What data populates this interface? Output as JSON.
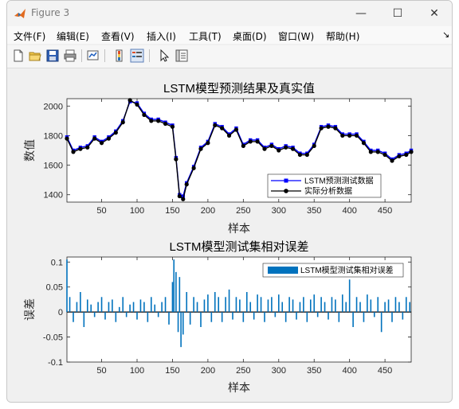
{
  "window": {
    "title": "Figure 3",
    "controls": {
      "minimize": "—",
      "maximize": "☐",
      "close": "✕"
    }
  },
  "menubar": {
    "items": [
      {
        "label": "文件(F)"
      },
      {
        "label": "编辑(E)"
      },
      {
        "label": "查看(V)"
      },
      {
        "label": "插入(I)"
      },
      {
        "label": "工具(T)"
      },
      {
        "label": "桌面(D)"
      },
      {
        "label": "窗口(W)"
      },
      {
        "label": "帮助(H)"
      }
    ],
    "dock_glyph": "↘"
  },
  "toolbar": {
    "icons": [
      "new-figure-icon",
      "open-file-icon",
      "save-icon",
      "print-icon",
      "link-plot-icon",
      "insert-colorbar-icon",
      "insert-legend-icon",
      "pointer-icon",
      "property-inspector-icon"
    ]
  },
  "chart_data": [
    {
      "type": "line",
      "title": "LSTM模型预测结果及真实值",
      "xlabel": "样本",
      "ylabel": "数值",
      "xlim": [
        1,
        487
      ],
      "ylim": [
        1350,
        2050
      ],
      "xticks": [
        50,
        100,
        150,
        200,
        250,
        300,
        350,
        400,
        450
      ],
      "xtick_labels": [
        "50",
        "100",
        "150",
        "200",
        "250",
        "300",
        "350",
        "400",
        "450"
      ],
      "yticks": [
        1400,
        1600,
        1800,
        2000
      ],
      "ytick_labels": [
        "1400",
        "1600",
        "1800",
        "2000"
      ],
      "grid": false,
      "legend_position": "bottom-right",
      "series": [
        {
          "name": "LSTM预测测试数据",
          "color": "#0000ff",
          "marker": "square",
          "x": [
            1,
            10,
            20,
            30,
            40,
            50,
            60,
            70,
            80,
            90,
            100,
            110,
            120,
            130,
            140,
            150,
            155,
            160,
            165,
            170,
            180,
            190,
            200,
            210,
            220,
            230,
            240,
            250,
            260,
            270,
            280,
            290,
            300,
            310,
            320,
            330,
            340,
            350,
            360,
            370,
            380,
            390,
            400,
            410,
            420,
            430,
            440,
            450,
            460,
            470,
            480,
            487
          ],
          "values": [
            1790,
            1700,
            1720,
            1730,
            1790,
            1760,
            1790,
            1830,
            1900,
            2030,
            2020,
            1950,
            1910,
            1910,
            1890,
            1870,
            1650,
            1400,
            1390,
            1480,
            1590,
            1720,
            1760,
            1880,
            1860,
            1810,
            1850,
            1740,
            1770,
            1770,
            1720,
            1740,
            1710,
            1730,
            1720,
            1680,
            1680,
            1740,
            1860,
            1870,
            1860,
            1810,
            1810,
            1810,
            1760,
            1700,
            1700,
            1680,
            1640,
            1670,
            1680,
            1700
          ]
        },
        {
          "name": "实际分析数据",
          "color": "#000000",
          "marker": "circle",
          "x": [
            1,
            10,
            20,
            30,
            40,
            50,
            60,
            70,
            80,
            90,
            100,
            110,
            120,
            130,
            140,
            150,
            155,
            160,
            165,
            170,
            180,
            190,
            200,
            210,
            220,
            230,
            240,
            250,
            260,
            270,
            280,
            290,
            300,
            310,
            320,
            330,
            340,
            350,
            360,
            370,
            380,
            390,
            400,
            410,
            420,
            430,
            440,
            450,
            460,
            470,
            480,
            487
          ],
          "values": [
            1780,
            1690,
            1710,
            1720,
            1780,
            1750,
            1780,
            1820,
            1890,
            2040,
            2010,
            1940,
            1900,
            1900,
            1880,
            1860,
            1640,
            1390,
            1370,
            1470,
            1580,
            1710,
            1750,
            1870,
            1850,
            1800,
            1840,
            1730,
            1760,
            1760,
            1710,
            1730,
            1700,
            1720,
            1710,
            1670,
            1670,
            1730,
            1850,
            1860,
            1850,
            1800,
            1800,
            1800,
            1750,
            1690,
            1690,
            1670,
            1630,
            1660,
            1670,
            1690
          ]
        }
      ]
    },
    {
      "type": "bar",
      "title": "LSTM模型测试集相对误差",
      "xlabel": "样本",
      "ylabel": "误差",
      "xlim": [
        1,
        487
      ],
      "ylim": [
        -0.1,
        0.11
      ],
      "xticks": [
        50,
        100,
        150,
        200,
        250,
        300,
        350,
        400,
        450
      ],
      "xtick_labels": [
        "50",
        "100",
        "150",
        "200",
        "250",
        "300",
        "350",
        "400",
        "450"
      ],
      "yticks": [
        -0.1,
        -0.05,
        0,
        0.05,
        0.1
      ],
      "ytick_labels": [
        "-0.1",
        "-0.05",
        "0",
        "0.05",
        "0.1"
      ],
      "grid": false,
      "legend_position": "top-right",
      "series": [
        {
          "name": "LSTM模型测试集相对误差",
          "color": "#0072bd",
          "x": [
            1,
            5,
            10,
            15,
            20,
            25,
            30,
            35,
            40,
            45,
            50,
            55,
            60,
            65,
            70,
            75,
            80,
            85,
            90,
            95,
            100,
            105,
            110,
            115,
            120,
            125,
            130,
            135,
            140,
            145,
            150,
            152,
            155,
            158,
            160,
            162,
            165,
            170,
            175,
            180,
            185,
            190,
            195,
            200,
            205,
            210,
            215,
            220,
            225,
            230,
            235,
            240,
            245,
            250,
            255,
            260,
            265,
            270,
            275,
            280,
            285,
            290,
            295,
            300,
            305,
            310,
            315,
            320,
            325,
            330,
            335,
            340,
            345,
            350,
            355,
            360,
            365,
            370,
            375,
            380,
            385,
            390,
            395,
            400,
            405,
            410,
            415,
            420,
            425,
            430,
            435,
            440,
            445,
            450,
            455,
            460,
            465,
            470,
            475,
            480,
            485
          ],
          "values": [
            0.105,
            0.03,
            -0.02,
            0.02,
            0.04,
            -0.03,
            0.025,
            0.015,
            -0.01,
            0.02,
            0.03,
            -0.015,
            0.02,
            0.025,
            -0.02,
            0.01,
            0.03,
            -0.01,
            0.015,
            0.02,
            -0.015,
            0.025,
            0.02,
            -0.02,
            0.03,
            0.015,
            -0.01,
            0.02,
            0.03,
            -0.025,
            0.06,
            0.105,
            0.08,
            -0.04,
            0.07,
            -0.07,
            -0.045,
            0.04,
            -0.025,
            0.03,
            0.02,
            -0.03,
            0.025,
            0.035,
            -0.02,
            0.04,
            0.03,
            -0.02,
            0.03,
            0.045,
            -0.015,
            0.03,
            0.025,
            -0.02,
            0.04,
            0.02,
            -0.015,
            0.035,
            0.03,
            -0.02,
            0.025,
            0.03,
            -0.01,
            0.035,
            0.02,
            -0.02,
            0.03,
            0.025,
            -0.015,
            0.02,
            0.03,
            -0.02,
            0.025,
            0.035,
            -0.01,
            0.03,
            0.02,
            -0.015,
            0.03,
            0.025,
            -0.02,
            0.035,
            0.02,
            0.065,
            -0.03,
            0.03,
            0.02,
            -0.02,
            0.035,
            0.025,
            -0.01,
            0.03,
            -0.04,
            0.02,
            0.025,
            -0.02,
            0.03,
            0.02,
            -0.015,
            0.03,
            0.02
          ]
        }
      ]
    }
  ]
}
